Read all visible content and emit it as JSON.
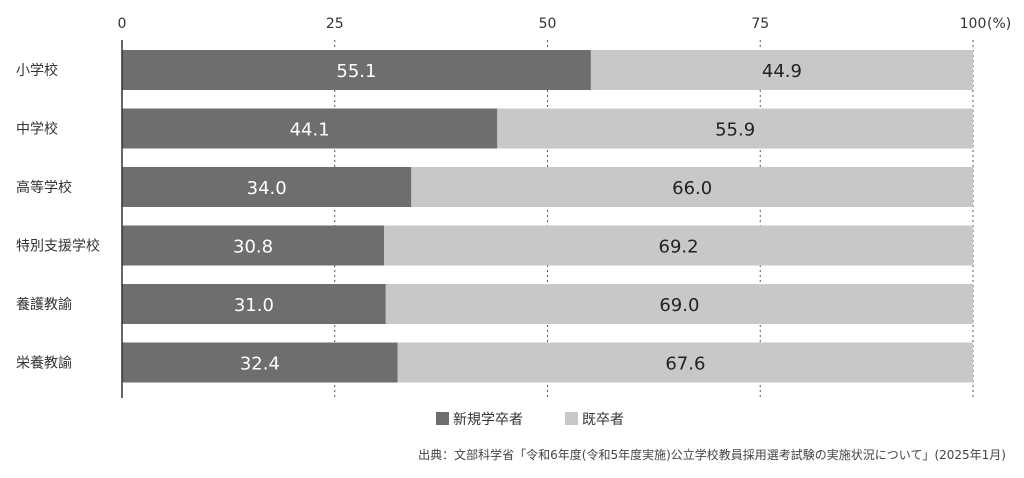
{
  "chart_data": {
    "type": "bar",
    "orientation": "horizontal",
    "stacked": true,
    "categories": [
      "小学校",
      "中学校",
      "高等学校",
      "特別支援学校",
      "養護教諭",
      "栄養教諭"
    ],
    "series": [
      {
        "name": "新規学卒者",
        "values": [
          55.1,
          44.1,
          34.0,
          30.8,
          31.0,
          32.4
        ],
        "labels": [
          "55.1",
          "44.1",
          "34.0",
          "30.8",
          "31.0",
          "32.4"
        ],
        "color": "#6e6e6e"
      },
      {
        "name": "既卒者",
        "values": [
          44.9,
          55.9,
          66.0,
          69.2,
          69.0,
          67.6
        ],
        "labels": [
          "44.9",
          "55.9",
          "66.0",
          "69.2",
          "69.0",
          "67.6"
        ],
        "color": "#c8c8c8"
      }
    ],
    "xlim": [
      0,
      100
    ],
    "xticks": [
      "0",
      "25",
      "50",
      "75",
      "100"
    ],
    "xunit": "(%)",
    "grid": "vertical dotted",
    "legend": "bottom-center"
  },
  "colors": {
    "label_dark_bar": "#ffffff",
    "label_light_bar": "#222222",
    "axis": "#333333"
  },
  "source": "出典：文部科学省「令和6年度(令和5年度実施)公立学校教員採用選考試験の実施状況について」(2025年1月)"
}
